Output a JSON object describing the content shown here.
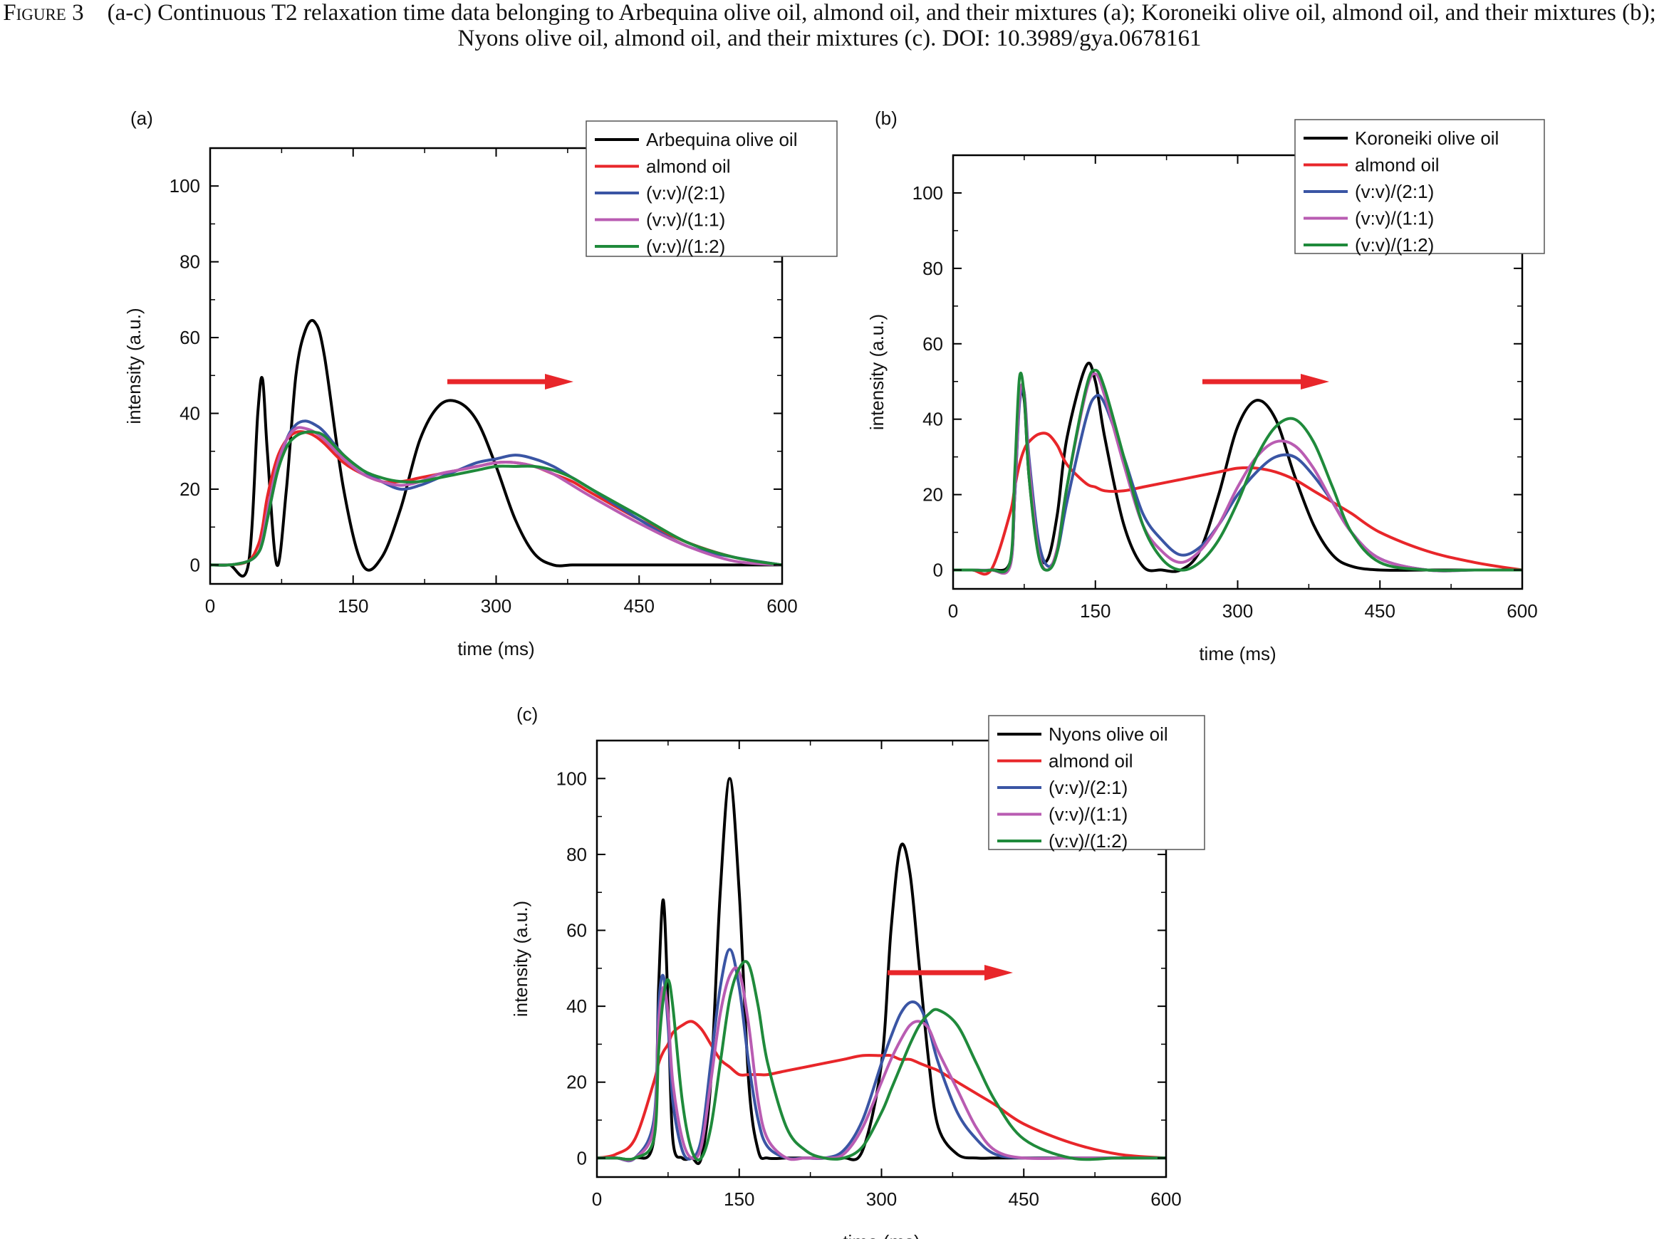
{
  "caption": {
    "label": "Figure 3",
    "text": "(a-c) Continuous T2 relaxation time data belonging to Arbequina olive oil, almond oil, and their mixtures (a); Koroneiki olive oil, almond oil, and their mixtures (b); Nyons olive oil, almond oil, and their mixtures (c). DOI: 10.3989/gya.0678161"
  },
  "colors": {
    "olive": "#000000",
    "almond": "#e8262a",
    "mix21": "#3a55a4",
    "mix11": "#b95cb2",
    "mix12": "#1f8a3b",
    "arrow": "#e8262a"
  },
  "chart_data": [
    {
      "type": "line",
      "panel_label": "(a)",
      "xlabel": "time (ms)",
      "ylabel": "intensity (a.u.)",
      "xlim": [
        0,
        600
      ],
      "ylim": [
        -5,
        110
      ],
      "xticks": [
        0,
        150,
        300,
        450,
        600
      ],
      "yticks": [
        0,
        20,
        40,
        60,
        80,
        100
      ],
      "legend_position": "top-right",
      "annotation": "red arrow pointing right",
      "x": [
        0,
        20,
        40,
        50,
        55,
        60,
        70,
        80,
        90,
        100,
        110,
        120,
        140,
        160,
        180,
        200,
        220,
        240,
        260,
        280,
        300,
        320,
        340,
        360,
        380,
        400,
        450,
        500,
        550,
        600
      ],
      "series": [
        {
          "name": "Arbequina olive oil",
          "color_key": "olive",
          "values": [
            0,
            0,
            0,
            40,
            49,
            30,
            0,
            20,
            50,
            62,
            64,
            55,
            20,
            0,
            2,
            15,
            33,
            42,
            43,
            38,
            26,
            12,
            3,
            0,
            0,
            0,
            0,
            0,
            0,
            0
          ]
        },
        {
          "name": "almond oil",
          "color_key": "almond",
          "values": [
            0,
            0,
            1,
            5,
            10,
            18,
            28,
            33,
            35,
            35,
            34,
            32,
            27,
            24,
            22,
            22,
            23,
            24,
            25,
            26,
            27,
            27,
            26,
            24,
            22,
            19,
            12,
            6,
            2,
            0
          ]
        },
        {
          "name": "(v:v)/(2:1)",
          "color_key": "mix21",
          "values": [
            0,
            0,
            1,
            3,
            6,
            12,
            24,
            33,
            37,
            38,
            37,
            35,
            29,
            25,
            22,
            20,
            21,
            23,
            25,
            27,
            28,
            29,
            28,
            26,
            23,
            20,
            12,
            5,
            2,
            0
          ]
        },
        {
          "name": "(v:v)/(1:1)",
          "color_key": "mix11",
          "values": [
            0,
            0,
            1,
            3,
            7,
            14,
            26,
            33,
            36,
            36,
            35,
            33,
            28,
            24,
            22,
            21,
            22,
            24,
            25,
            26,
            27,
            27,
            26,
            24,
            21,
            18,
            11,
            5,
            1,
            0
          ]
        },
        {
          "name": "(v:v)/(1:2)",
          "color_key": "mix12",
          "values": [
            0,
            0,
            1,
            3,
            6,
            12,
            24,
            31,
            34,
            35,
            35,
            34,
            29,
            25,
            23,
            22,
            22,
            23,
            24,
            25,
            26,
            26,
            26,
            25,
            23,
            20,
            13,
            6,
            2,
            0
          ]
        }
      ]
    },
    {
      "type": "line",
      "panel_label": "(b)",
      "xlabel": "time (ms)",
      "ylabel": "intensity (a.u.)",
      "xlim": [
        0,
        600
      ],
      "ylim": [
        -5,
        110
      ],
      "xticks": [
        0,
        150,
        300,
        450,
        600
      ],
      "yticks": [
        0,
        20,
        40,
        60,
        80,
        100
      ],
      "legend_position": "top-right",
      "annotation": "red arrow pointing right",
      "x": [
        0,
        20,
        40,
        60,
        65,
        70,
        75,
        80,
        90,
        100,
        110,
        120,
        140,
        150,
        160,
        180,
        200,
        220,
        240,
        260,
        280,
        300,
        320,
        340,
        360,
        380,
        400,
        420,
        450,
        500,
        550,
        600
      ],
      "series": [
        {
          "name": "Koroneiki olive oil",
          "color_key": "olive",
          "values": [
            0,
            0,
            0,
            2,
            20,
            45,
            45,
            25,
            5,
            3,
            15,
            35,
            54,
            50,
            35,
            12,
            1,
            0,
            0,
            5,
            20,
            38,
            45,
            40,
            25,
            12,
            4,
            1,
            0,
            0,
            0,
            0
          ]
        },
        {
          "name": "almond oil",
          "color_key": "almond",
          "values": [
            0,
            0,
            0,
            15,
            22,
            28,
            32,
            34,
            36,
            36,
            33,
            28,
            23,
            22,
            21,
            21,
            22,
            23,
            24,
            25,
            26,
            27,
            27,
            26,
            24,
            21,
            18,
            15,
            10,
            5,
            2,
            0
          ]
        },
        {
          "name": "(v:v)/(2:1)",
          "color_key": "mix21",
          "values": [
            0,
            0,
            0,
            1,
            20,
            44,
            47,
            30,
            8,
            1,
            5,
            18,
            40,
            46,
            44,
            30,
            15,
            8,
            4,
            6,
            12,
            20,
            26,
            30,
            30,
            25,
            18,
            10,
            3,
            0,
            0,
            0
          ]
        },
        {
          "name": "(v:v)/(1:1)",
          "color_key": "mix11",
          "values": [
            0,
            0,
            0,
            1,
            22,
            46,
            47,
            28,
            5,
            0,
            6,
            22,
            47,
            52,
            46,
            28,
            12,
            5,
            2,
            5,
            12,
            22,
            30,
            34,
            33,
            27,
            18,
            10,
            3,
            0,
            0,
            0
          ]
        },
        {
          "name": "(v:v)/(1:2)",
          "color_key": "mix12",
          "values": [
            0,
            0,
            0,
            2,
            26,
            51,
            46,
            25,
            4,
            0,
            5,
            22,
            48,
            53,
            48,
            30,
            12,
            3,
            0,
            2,
            8,
            18,
            30,
            38,
            40,
            34,
            22,
            10,
            2,
            0,
            0,
            0
          ]
        }
      ]
    },
    {
      "type": "line",
      "panel_label": "(c)",
      "xlabel": "time (ms)",
      "ylabel": "intensity (a.u.)",
      "xlim": [
        0,
        600
      ],
      "ylim": [
        -5,
        110
      ],
      "xticks": [
        0,
        150,
        300,
        450,
        600
      ],
      "yticks": [
        0,
        20,
        40,
        60,
        80,
        100
      ],
      "legend_position": "top-right",
      "annotation": "red arrow pointing right",
      "x": [
        0,
        20,
        40,
        60,
        65,
        70,
        75,
        80,
        90,
        100,
        110,
        120,
        130,
        140,
        150,
        160,
        170,
        180,
        200,
        220,
        240,
        260,
        280,
        300,
        310,
        320,
        330,
        340,
        350,
        360,
        380,
        400,
        420,
        450,
        500,
        550,
        600
      ],
      "series": [
        {
          "name": "Nyons olive oil",
          "color_key": "olive",
          "values": [
            0,
            0,
            0,
            5,
            45,
            68,
            40,
            5,
            0,
            0,
            0,
            20,
            70,
            100,
            70,
            20,
            2,
            0,
            0,
            0,
            0,
            0,
            2,
            25,
            60,
            82,
            75,
            50,
            25,
            8,
            1,
            0,
            0,
            0,
            0,
            0,
            0
          ]
        },
        {
          "name": "almond oil",
          "color_key": "almond",
          "values": [
            0,
            1,
            5,
            20,
            25,
            28,
            30,
            33,
            35,
            36,
            34,
            30,
            26,
            24,
            22,
            22,
            22,
            22,
            23,
            24,
            25,
            26,
            27,
            27,
            27,
            26,
            26,
            25,
            24,
            23,
            20,
            17,
            14,
            9,
            4,
            1,
            0
          ]
        },
        {
          "name": "(v:v)/(2:1)",
          "color_key": "mix21",
          "values": [
            0,
            0,
            0,
            10,
            40,
            48,
            35,
            15,
            2,
            0,
            5,
            25,
            45,
            55,
            45,
            25,
            10,
            3,
            0,
            0,
            0,
            2,
            10,
            25,
            32,
            38,
            41,
            40,
            34,
            25,
            12,
            5,
            1,
            0,
            0,
            0,
            0
          ]
        },
        {
          "name": "(v:v)/(1:1)",
          "color_key": "mix11",
          "values": [
            0,
            0,
            0,
            8,
            35,
            45,
            38,
            20,
            5,
            0,
            3,
            20,
            38,
            48,
            49,
            35,
            15,
            5,
            0,
            0,
            0,
            1,
            8,
            20,
            26,
            31,
            35,
            36,
            34,
            28,
            18,
            8,
            2,
            0,
            0,
            0,
            0
          ]
        },
        {
          "name": "(v:v)/(1:2)",
          "color_key": "mix12",
          "values": [
            0,
            0,
            0,
            5,
            28,
            42,
            47,
            40,
            15,
            2,
            0,
            8,
            25,
            42,
            50,
            51,
            40,
            25,
            8,
            2,
            0,
            0,
            3,
            12,
            18,
            24,
            30,
            35,
            38,
            39,
            35,
            25,
            15,
            5,
            0,
            0,
            0
          ]
        }
      ]
    }
  ]
}
